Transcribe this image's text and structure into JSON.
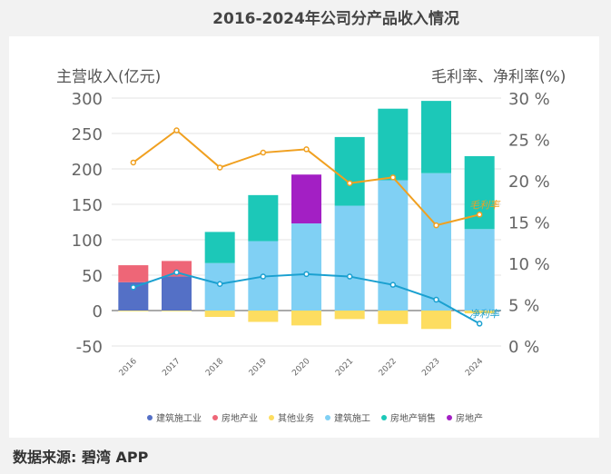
{
  "chart_data": {
    "type": "bar+line",
    "title": "2016-2024年公司分产品收入情况",
    "ylabel_left": "主营收入(亿元)",
    "ylabel_right": "毛利率、净利率(%)",
    "ylim_left": [
      -50,
      300
    ],
    "yticks_left": [
      "-50",
      "0",
      "50",
      "100",
      "150",
      "200",
      "250",
      "300"
    ],
    "ylim_right": [
      0,
      30
    ],
    "yticks_right": [
      "0 %",
      "5 %",
      "10 %",
      "15 %",
      "20 %",
      "25 %",
      "30 %"
    ],
    "grid": true,
    "legend_placement": "bottom",
    "categories": [
      "2016",
      "2017",
      "2018",
      "2019",
      "2020",
      "2021",
      "2022",
      "2023",
      "2024"
    ],
    "series": [
      {
        "name": "建筑施工业",
        "type": "bar",
        "color": "#5470c6",
        "values": [
          40,
          48,
          0,
          0,
          0,
          0,
          0,
          0,
          0
        ]
      },
      {
        "name": "房地产业",
        "type": "bar",
        "color": "#ee6677",
        "values": [
          24,
          22,
          0,
          0,
          0,
          0,
          0,
          0,
          0
        ]
      },
      {
        "name": "其他业务",
        "type": "bar",
        "color": "#fddd60",
        "values": [
          -1,
          -1,
          -9,
          -16,
          -21,
          -12,
          -19,
          -26,
          -4
        ]
      },
      {
        "name": "建筑施工",
        "type": "bar",
        "color": "#80d0f4",
        "values": [
          0,
          0,
          67,
          98,
          123,
          148,
          184,
          194,
          115
        ]
      },
      {
        "name": "房地产销售",
        "type": "bar",
        "color": "#1cc8b8",
        "values": [
          0,
          0,
          44,
          65,
          0,
          97,
          101,
          102,
          103
        ]
      },
      {
        "name": "房地产",
        "type": "bar",
        "color": "#a31fc4",
        "values": [
          0,
          0,
          0,
          0,
          69,
          0,
          0,
          0,
          0
        ]
      },
      {
        "name": "毛利率",
        "type": "line",
        "axis": "right",
        "color": "#f0a020",
        "values": [
          22.2,
          26.1,
          21.6,
          23.4,
          23.8,
          19.7,
          20.4,
          14.6,
          15.9
        ]
      },
      {
        "name": "净利率",
        "type": "line",
        "axis": "right",
        "color": "#1aa0d0",
        "values": [
          7.1,
          8.9,
          7.5,
          8.4,
          8.7,
          8.4,
          7.4,
          5.6,
          2.7
        ]
      }
    ]
  },
  "footer": {
    "source": "数据来源: 碧湾 APP"
  }
}
